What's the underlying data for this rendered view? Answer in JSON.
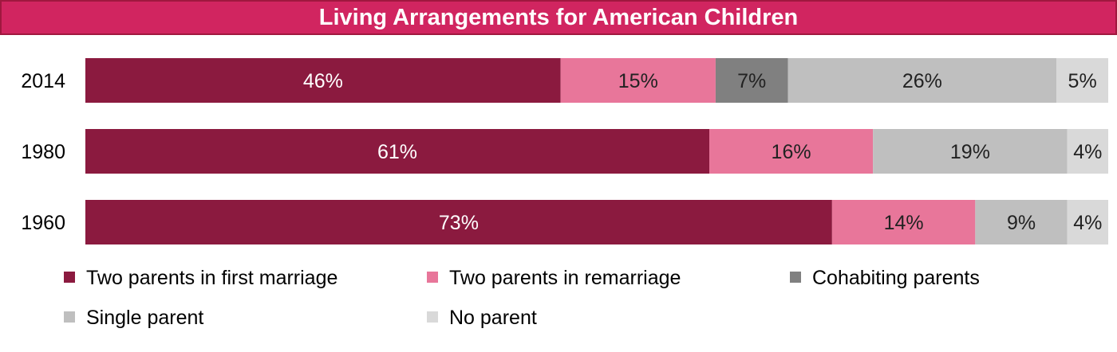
{
  "colors": {
    "title_background": "#d12560",
    "title_border": "#a0183f",
    "title_text": "#ffffff",
    "series": [
      "#8b1a3f",
      "#e8769a",
      "#808080",
      "#bfbfbf",
      "#d9d9d9"
    ],
    "label_dark_bg": "#ffffff",
    "label_light_bg": "#222222"
  },
  "chart_data": {
    "type": "bar",
    "orientation": "horizontal",
    "stacked": true,
    "title": "Living Arrangements for American Children",
    "xlabel": "",
    "ylabel": "",
    "value_unit": "%",
    "xlim": [
      0,
      100
    ],
    "grid": false,
    "legend_position": "bottom",
    "categories": [
      "2014",
      "1980",
      "1960"
    ],
    "series": [
      {
        "name": "Two parents in first marriage",
        "values": [
          46,
          61,
          73
        ]
      },
      {
        "name": "Two parents in remarriage",
        "values": [
          15,
          16,
          14
        ]
      },
      {
        "name": "Cohabiting parents",
        "values": [
          7,
          null,
          null
        ]
      },
      {
        "name": "Single parent",
        "values": [
          26,
          19,
          9
        ]
      },
      {
        "name": "No parent",
        "values": [
          5,
          4,
          4
        ]
      }
    ]
  }
}
